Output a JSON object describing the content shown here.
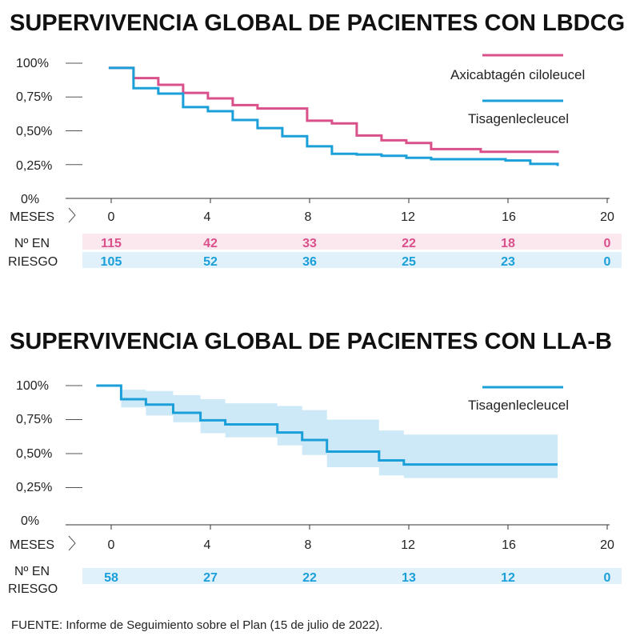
{
  "colors": {
    "axicel": "#d9508a",
    "tisa": "#1a9fd9",
    "axicel_band": "#fbe8ef",
    "tisa_band": "#e0f1fb",
    "ci_band": "#cde9f8",
    "axis": "#333333"
  },
  "labels": {
    "meses": "MESES",
    "n_en": "Nº EN",
    "riesgo": "RIESGO",
    "source": "FUENTE: Informe de Seguimiento sobre el Plan (15 de julio de 2022)."
  },
  "chart_data": [
    {
      "type": "line",
      "title": "SUPERVIVENCIA GLOBAL DE PACIENTES CON LBDCG",
      "xlabel": "MESES",
      "xlim": [
        0,
        20
      ],
      "ylim": [
        0,
        1
      ],
      "x_ticks": [
        "0",
        "4",
        "8",
        "12",
        "16",
        "20"
      ],
      "y_ticks": [
        "100%",
        "0,75%",
        "0,50%",
        "0,25%",
        "0%"
      ],
      "legend": [
        "Axicabtagén ciloleucel",
        "Tisagenlecleucel"
      ],
      "series": [
        {
          "name": "Axicabtagén ciloleucel",
          "color_key": "axicel",
          "x": [
            -0.1,
            0.9,
            1.9,
            2.9,
            3.9,
            4.9,
            5.9,
            7.9,
            8.9,
            9.9,
            10.9,
            11.9,
            12.9,
            14.9,
            18.0
          ],
          "y": [
            0.965,
            0.89,
            0.84,
            0.78,
            0.74,
            0.69,
            0.665,
            0.575,
            0.555,
            0.465,
            0.43,
            0.41,
            0.365,
            0.345,
            0.335
          ]
        },
        {
          "name": "Tisagenlecleucel",
          "color_key": "tisa",
          "x": [
            -0.1,
            0.9,
            1.9,
            2.9,
            3.9,
            4.9,
            5.9,
            6.9,
            7.9,
            8.9,
            9.9,
            10.9,
            11.9,
            12.9,
            15.9,
            16.9,
            18.0
          ],
          "y": [
            0.965,
            0.815,
            0.775,
            0.675,
            0.645,
            0.58,
            0.52,
            0.46,
            0.385,
            0.33,
            0.325,
            0.315,
            0.3,
            0.29,
            0.28,
            0.255,
            0.24
          ]
        }
      ],
      "at_risk": {
        "x": [
          0,
          4,
          8,
          12,
          16,
          20
        ],
        "rows": [
          {
            "color_key": "axicel",
            "band_key": "axicel_band",
            "values": [
              "115",
              "42",
              "33",
              "22",
              "18",
              "0"
            ]
          },
          {
            "color_key": "tisa",
            "band_key": "tisa_band",
            "values": [
              "105",
              "52",
              "36",
              "25",
              "23",
              "0"
            ]
          }
        ]
      }
    },
    {
      "type": "line",
      "title": "SUPERVIVENCIA GLOBAL DE PACIENTES CON LLA-B",
      "xlabel": "MESES",
      "xlim": [
        0,
        20
      ],
      "ylim": [
        0,
        1
      ],
      "x_ticks": [
        "0",
        "4",
        "8",
        "12",
        "16",
        "20"
      ],
      "y_ticks": [
        "100%",
        "0,75%",
        "0,50%",
        "0,25%",
        "0%"
      ],
      "legend": [
        "Tisagenlecleucel"
      ],
      "series": [
        {
          "name": "Tisagenlecleucel",
          "color_key": "tisa",
          "x": [
            -0.6,
            0.4,
            1.4,
            2.5,
            3.6,
            4.6,
            6.7,
            7.7,
            8.7,
            10.8,
            11.8,
            18.0
          ],
          "y": [
            1.0,
            0.9,
            0.86,
            0.8,
            0.745,
            0.715,
            0.655,
            0.6,
            0.515,
            0.45,
            0.42,
            0.42
          ],
          "ci_upper": [
            1.0,
            0.97,
            0.96,
            0.93,
            0.9,
            0.87,
            0.85,
            0.82,
            0.75,
            0.67,
            0.64,
            0.64
          ],
          "ci_lower": [
            1.0,
            0.84,
            0.78,
            0.73,
            0.65,
            0.62,
            0.56,
            0.49,
            0.4,
            0.34,
            0.32,
            0.32
          ]
        }
      ],
      "at_risk": {
        "x": [
          0,
          4,
          8,
          12,
          16,
          20
        ],
        "rows": [
          {
            "color_key": "tisa",
            "band_key": "tisa_band",
            "values": [
              "58",
              "27",
              "22",
              "13",
              "12",
              "0"
            ]
          }
        ]
      }
    }
  ]
}
